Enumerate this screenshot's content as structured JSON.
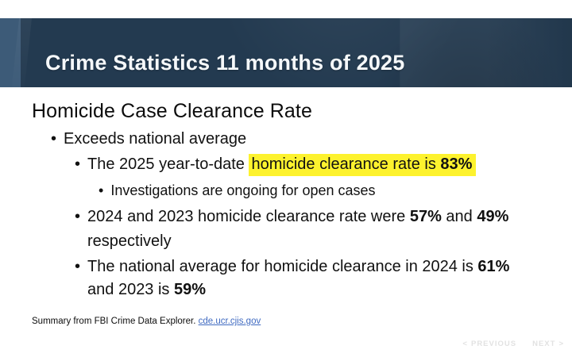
{
  "slide": {
    "header": {
      "title": "Crime Statistics 11 months of 2025"
    },
    "title": "Homicide Case Clearance Rate",
    "bullets": {
      "exceeds": "Exceeds national average",
      "ytd": {
        "prefix": "The 2025 year-to-date ",
        "highlight": "homicide clearance rate is ",
        "highlight_bold": "83%"
      },
      "open_cases": "Investigations are ongoing for open cases",
      "history": {
        "p1": "2024 and 2023 homicide clearance rate were ",
        "b1": "57%",
        "p2": " and ",
        "b2": "49%",
        "line2": "respectively"
      },
      "national": {
        "p1": "The national average for homicide clearance in 2024 is ",
        "b1": "61%",
        "line2_prefix": "and 2023 is ",
        "b2": "59%"
      }
    },
    "footer": {
      "text": "Summary from FBI Crime Data Explorer. ",
      "link": "cde.ucr.cjis.gov"
    },
    "nav": {
      "chevron_left": "<",
      "previous_label": "PREVIOUS",
      "next_label": "NEXT",
      "chevron_right": ">"
    },
    "bullet_glyph": "•",
    "colors": {
      "header_bar": "#233a50",
      "header_accent": "#3d5b78",
      "highlight": "#fdf22e",
      "link": "#3f6ac1",
      "nav_text": "#e2e2e2"
    }
  }
}
